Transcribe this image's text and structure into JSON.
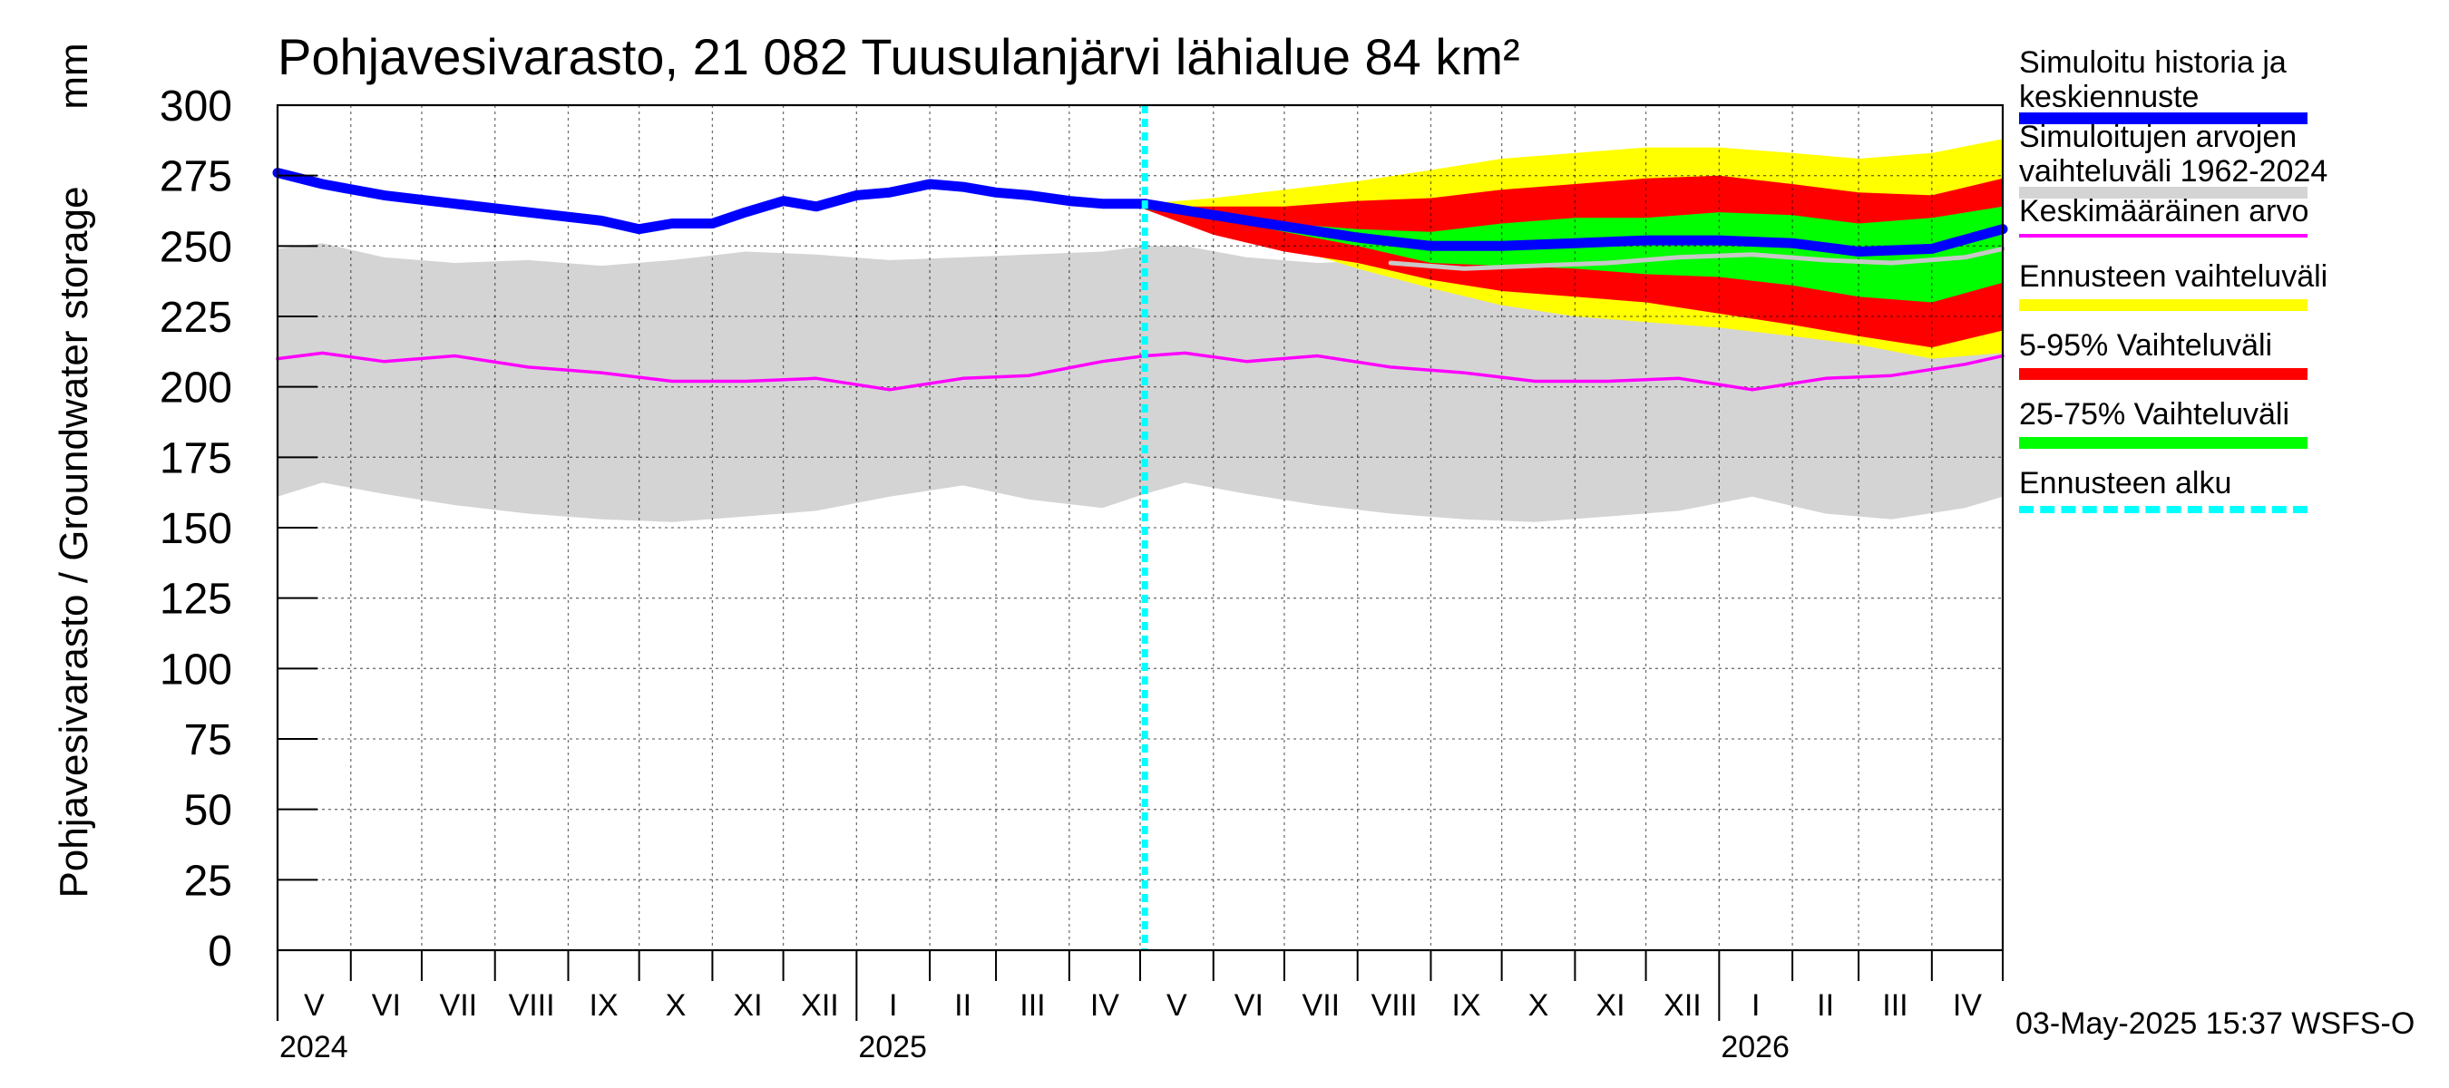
{
  "chart_data": {
    "type": "area",
    "title": "Pohjavesivarasto, 21 082 Tuusulanjärvi lähialue 84 km²",
    "ylabel": "Pohjavesivarasto / Groundwater storage",
    "yunit": "mm",
    "ylim": [
      0,
      300
    ],
    "yticks": [
      "0",
      "25",
      "50",
      "75",
      "100",
      "125",
      "150",
      "175",
      "200",
      "225",
      "250",
      "275",
      "300"
    ],
    "xlim": [
      "2024-05-01",
      "2026-05-01"
    ],
    "months": [
      {
        "label": "V",
        "start": "2024-05-01",
        "end": "2024-06-01"
      },
      {
        "label": "VI",
        "start": "2024-06-01",
        "end": "2024-07-01"
      },
      {
        "label": "VII",
        "start": "2024-07-01",
        "end": "2024-08-01"
      },
      {
        "label": "VIII",
        "start": "2024-08-01",
        "end": "2024-09-01"
      },
      {
        "label": "IX",
        "start": "2024-09-01",
        "end": "2024-10-01"
      },
      {
        "label": "X",
        "start": "2024-10-01",
        "end": "2024-11-01"
      },
      {
        "label": "XI",
        "start": "2024-11-01",
        "end": "2024-12-01"
      },
      {
        "label": "XII",
        "start": "2024-12-01",
        "end": "2025-01-01"
      },
      {
        "label": "I",
        "start": "2025-01-01",
        "end": "2025-02-01"
      },
      {
        "label": "II",
        "start": "2025-02-01",
        "end": "2025-03-01"
      },
      {
        "label": "III",
        "start": "2025-03-01",
        "end": "2025-04-01"
      },
      {
        "label": "IV",
        "start": "2025-04-01",
        "end": "2025-05-01"
      },
      {
        "label": "V",
        "start": "2025-05-01",
        "end": "2025-06-01"
      },
      {
        "label": "VI",
        "start": "2025-06-01",
        "end": "2025-07-01"
      },
      {
        "label": "VII",
        "start": "2025-07-01",
        "end": "2025-08-01"
      },
      {
        "label": "VIII",
        "start": "2025-08-01",
        "end": "2025-09-01"
      },
      {
        "label": "IX",
        "start": "2025-09-01",
        "end": "2025-10-01"
      },
      {
        "label": "X",
        "start": "2025-10-01",
        "end": "2025-11-01"
      },
      {
        "label": "XI",
        "start": "2025-11-01",
        "end": "2025-12-01"
      },
      {
        "label": "XII",
        "start": "2025-12-01",
        "end": "2026-01-01"
      },
      {
        "label": "I",
        "start": "2026-01-01",
        "end": "2026-02-01"
      },
      {
        "label": "II",
        "start": "2026-02-01",
        "end": "2026-03-01"
      },
      {
        "label": "III",
        "start": "2026-03-01",
        "end": "2026-04-01"
      },
      {
        "label": "IV",
        "start": "2026-04-01",
        "end": "2026-05-01"
      }
    ],
    "years": [
      {
        "label": "2024",
        "date": "2024-05-01"
      },
      {
        "label": "2025",
        "date": "2025-01-01"
      },
      {
        "label": "2026",
        "date": "2026-01-01"
      }
    ],
    "forecast_start": "2025-05-03",
    "bands": [
      {
        "name": "Simuloitujen arvojen vaihteluväli 1962-2024",
        "color": "#d4d4d4",
        "x": [
          "2024-05-01",
          "2024-05-20",
          "2024-06-15",
          "2024-07-15",
          "2024-08-15",
          "2024-09-15",
          "2024-10-15",
          "2024-11-15",
          "2024-12-15",
          "2025-01-15",
          "2025-02-15",
          "2025-03-15",
          "2025-04-15",
          "2025-05-03",
          "2025-05-20",
          "2025-06-15",
          "2025-07-15",
          "2025-08-15",
          "2025-09-15",
          "2025-10-15",
          "2025-11-15",
          "2025-12-15",
          "2026-01-15",
          "2026-02-15",
          "2026-03-15",
          "2026-04-15",
          "2026-05-01"
        ],
        "lower": [
          161,
          166,
          162,
          158,
          155,
          153,
          152,
          154,
          156,
          161,
          165,
          160,
          157,
          162,
          166,
          162,
          158,
          155,
          153,
          152,
          154,
          156,
          161,
          155,
          153,
          157,
          161
        ],
        "upper": [
          249,
          251,
          246,
          244,
          245,
          243,
          245,
          248,
          247,
          245,
          246,
          247,
          248,
          250,
          250,
          246,
          244,
          245,
          243,
          245,
          248,
          247,
          245,
          244,
          243,
          245,
          249
        ]
      },
      {
        "name": "Ennusteen vaihteluväli",
        "color": "#ffff00",
        "x": [
          "2025-05-03",
          "2025-06-01",
          "2025-07-01",
          "2025-08-01",
          "2025-09-01",
          "2025-10-01",
          "2025-11-01",
          "2025-12-01",
          "2026-01-01",
          "2026-02-01",
          "2026-03-01",
          "2026-04-01",
          "2026-05-01"
        ],
        "lower": [
          263,
          256,
          250,
          242,
          235,
          229,
          225,
          223,
          221,
          218,
          215,
          210,
          212
        ],
        "upper": [
          265,
          267,
          270,
          273,
          277,
          281,
          283,
          285,
          285,
          283,
          281,
          283,
          288
        ]
      },
      {
        "name": "5-95% Vaihteluväli",
        "color": "#ff0000",
        "x": [
          "2025-05-03",
          "2025-06-01",
          "2025-07-01",
          "2025-08-01",
          "2025-09-01",
          "2025-10-01",
          "2025-11-01",
          "2025-12-01",
          "2026-01-01",
          "2026-02-01",
          "2026-03-01",
          "2026-04-01",
          "2026-05-01"
        ],
        "lower": [
          263,
          254,
          248,
          244,
          238,
          234,
          232,
          230,
          226,
          222,
          218,
          214,
          220
        ],
        "upper": [
          264,
          264,
          264,
          266,
          267,
          270,
          272,
          274,
          275,
          272,
          269,
          268,
          274
        ]
      },
      {
        "name": "25-75% Vaihteluväli",
        "color": "#00ff00",
        "x": [
          "2025-05-03",
          "2025-06-01",
          "2025-07-01",
          "2025-08-01",
          "2025-09-01",
          "2025-10-01",
          "2025-11-01",
          "2025-12-01",
          "2026-01-01",
          "2026-02-01",
          "2026-03-01",
          "2026-04-01",
          "2026-05-01"
        ],
        "lower": [
          263,
          260,
          255,
          250,
          244,
          243,
          242,
          240,
          239,
          236,
          232,
          230,
          237
        ],
        "upper": [
          264,
          262,
          258,
          256,
          255,
          258,
          260,
          260,
          262,
          261,
          258,
          260,
          264
        ]
      }
    ],
    "series": [
      {
        "name": "Keskimääräinen arvo",
        "color": "#ff00ff",
        "x": [
          "2024-05-01",
          "2024-05-20",
          "2024-06-15",
          "2024-07-15",
          "2024-08-15",
          "2024-09-15",
          "2024-10-15",
          "2024-11-15",
          "2024-12-15",
          "2025-01-15",
          "2025-02-15",
          "2025-03-15",
          "2025-04-15",
          "2025-05-03",
          "2025-05-20",
          "2025-06-15",
          "2025-07-15",
          "2025-08-15",
          "2025-09-15",
          "2025-10-15",
          "2025-11-15",
          "2025-12-15",
          "2026-01-15",
          "2026-02-15",
          "2026-03-15",
          "2026-04-15",
          "2026-05-01"
        ],
        "values": [
          210,
          212,
          209,
          211,
          207,
          205,
          202,
          202,
          203,
          199,
          203,
          204,
          209,
          211,
          212,
          209,
          211,
          207,
          205,
          202,
          202,
          203,
          199,
          203,
          204,
          208,
          211
        ]
      },
      {
        "name": "Keskiennuste (harmaa)",
        "color": "#c8c8c8",
        "x": [
          "2025-08-15",
          "2025-09-15",
          "2025-10-15",
          "2025-11-15",
          "2025-12-15",
          "2026-01-15",
          "2026-02-15",
          "2026-03-15",
          "2026-04-15",
          "2026-05-01"
        ],
        "values": [
          244,
          242,
          243,
          244,
          246,
          247,
          245,
          244,
          246,
          249
        ]
      },
      {
        "name": "Simuloitu historia ja keskiennuste",
        "color": "#0000ff",
        "x": [
          "2024-05-01",
          "2024-05-20",
          "2024-06-15",
          "2024-07-15",
          "2024-08-15",
          "2024-09-15",
          "2024-10-01",
          "2024-10-15",
          "2024-11-01",
          "2024-11-15",
          "2024-12-01",
          "2024-12-15",
          "2025-01-01",
          "2025-01-15",
          "2025-02-01",
          "2025-02-15",
          "2025-03-01",
          "2025-03-15",
          "2025-04-01",
          "2025-04-15",
          "2025-05-03",
          "2025-06-01",
          "2025-07-01",
          "2025-08-01",
          "2025-09-01",
          "2025-10-01",
          "2025-11-01",
          "2025-12-01",
          "2026-01-01",
          "2026-02-01",
          "2026-03-01",
          "2026-04-01",
          "2026-05-01"
        ],
        "values": [
          276,
          272,
          268,
          265,
          262,
          259,
          256,
          258,
          258,
          262,
          266,
          264,
          268,
          269,
          272,
          271,
          269,
          268,
          266,
          265,
          265,
          261,
          257,
          253,
          250,
          250,
          251,
          252,
          252,
          251,
          248,
          249,
          256
        ]
      }
    ]
  },
  "legend": [
    {
      "label": "Simuloitu historia ja keskiennuste",
      "color": "#0000ff",
      "style": "solid"
    },
    {
      "label": "Simuloitujen arvojen vaihteluväli 1962-2024",
      "color": "#d4d4d4",
      "style": "solid"
    },
    {
      "label": "Keskimääräinen arvo",
      "color": "#ff00ff",
      "style": "thin"
    },
    {
      "label": "Ennusteen vaihteluväli",
      "color": "#ffff00",
      "style": "solid"
    },
    {
      "label": "5-95% Vaihteluväli",
      "color": "#ff0000",
      "style": "solid"
    },
    {
      "label": "25-75% Vaihteluväli",
      "color": "#00ff00",
      "style": "solid"
    },
    {
      "label": "Ennusteen alku",
      "color": "#00ffff",
      "style": "dotted"
    }
  ],
  "footer": "03-May-2025 15:37 WSFS-O"
}
